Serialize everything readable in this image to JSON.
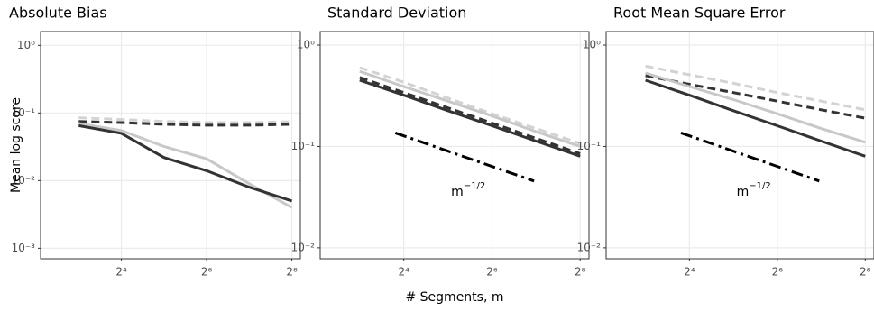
{
  "chart_data": [
    {
      "type": "line",
      "title": "Absolute Bias",
      "ylabel": "Mean log score",
      "log_x": true,
      "log_y": true,
      "grid": true,
      "x": [
        8,
        16,
        32,
        64,
        128,
        256
      ],
      "xlim": [
        4.3,
        294
      ],
      "xticks": [
        {
          "value": 16,
          "label": "2⁴"
        },
        {
          "value": 64,
          "label": "2⁶"
        },
        {
          "value": 256,
          "label": "2⁸"
        }
      ],
      "ylim": [
        0.0007,
        1.6
      ],
      "yticks": [
        {
          "value": 0.001,
          "label": "10⁻³"
        },
        {
          "value": 0.01,
          "label": "10⁻²"
        },
        {
          "value": 0.1,
          "label": "10⁻¹"
        },
        {
          "value": 1,
          "label": "10⁰"
        }
      ],
      "series": [
        {
          "color": "#d3d3d3",
          "linestyle": "dashed",
          "values": [
            0.085,
            0.08,
            0.075,
            0.072,
            0.072,
            0.074
          ]
        },
        {
          "color": "#333333",
          "linestyle": "dashed",
          "values": [
            0.075,
            0.072,
            0.068,
            0.066,
            0.066,
            0.068
          ]
        },
        {
          "color": "#c8c8c8",
          "linestyle": "solid",
          "values": [
            0.07,
            0.055,
            0.032,
            0.021,
            0.009,
            0.004
          ]
        },
        {
          "color": "#333333",
          "linestyle": "solid",
          "values": [
            0.065,
            0.05,
            0.022,
            0.014,
            0.008,
            0.005
          ]
        }
      ]
    },
    {
      "type": "line",
      "title": "Standard Deviation",
      "xlabel": "# Segments, m",
      "log_x": true,
      "log_y": true,
      "grid": true,
      "x": [
        8,
        16,
        32,
        64,
        128,
        256
      ],
      "xlim": [
        4.3,
        294
      ],
      "xticks": [
        {
          "value": 16,
          "label": "2⁴"
        },
        {
          "value": 64,
          "label": "2⁶"
        },
        {
          "value": 256,
          "label": "2⁸"
        }
      ],
      "ylim": [
        0.0078,
        1.36
      ],
      "yticks": [
        {
          "value": 0.01,
          "label": "10⁻²"
        },
        {
          "value": 0.1,
          "label": "10⁻¹"
        },
        {
          "value": 1,
          "label": "10⁰"
        }
      ],
      "series": [
        {
          "color": "#d3d3d3",
          "linestyle": "dashed",
          "values": [
            0.6,
            0.43,
            0.3,
            0.21,
            0.15,
            0.107
          ]
        },
        {
          "color": "#c8c8c8",
          "linestyle": "solid",
          "values": [
            0.55,
            0.39,
            0.28,
            0.2,
            0.14,
            0.1
          ]
        },
        {
          "color": "#333333",
          "linestyle": "dashed",
          "values": [
            0.48,
            0.34,
            0.24,
            0.17,
            0.12,
            0.085
          ]
        },
        {
          "color": "#333333",
          "linestyle": "solid",
          "values": [
            0.45,
            0.32,
            0.225,
            0.16,
            0.113,
            0.08
          ]
        },
        {
          "color": "#000000",
          "linestyle": "dashdot",
          "x": [
            14,
            124
          ],
          "values": [
            0.136,
            0.0456
          ]
        }
      ],
      "annotation": {
        "text": "m",
        "superscript": "−1/2"
      }
    },
    {
      "type": "line",
      "title": "Root Mean Square Error",
      "log_x": true,
      "log_y": true,
      "grid": true,
      "x": [
        8,
        16,
        32,
        64,
        128,
        256
      ],
      "xlim": [
        4.3,
        294
      ],
      "xticks": [
        {
          "value": 16,
          "label": "2⁴"
        },
        {
          "value": 64,
          "label": "2⁶"
        },
        {
          "value": 256,
          "label": "2⁸"
        }
      ],
      "ylim": [
        0.0078,
        1.36
      ],
      "yticks": [
        {
          "value": 0.01,
          "label": "10⁻²"
        },
        {
          "value": 0.1,
          "label": "10⁻¹"
        },
        {
          "value": 1,
          "label": "10⁰"
        }
      ],
      "series": [
        {
          "color": "#d3d3d3",
          "linestyle": "dashed",
          "values": [
            0.62,
            0.51,
            0.42,
            0.34,
            0.28,
            0.23
          ]
        },
        {
          "color": "#333333",
          "linestyle": "dashed",
          "values": [
            0.5,
            0.41,
            0.34,
            0.28,
            0.23,
            0.19
          ]
        },
        {
          "color": "#c8c8c8",
          "linestyle": "solid",
          "values": [
            0.53,
            0.39,
            0.29,
            0.21,
            0.15,
            0.11
          ]
        },
        {
          "color": "#333333",
          "linestyle": "solid",
          "values": [
            0.45,
            0.32,
            0.225,
            0.16,
            0.113,
            0.08
          ]
        },
        {
          "color": "#000000",
          "linestyle": "dashdot",
          "x": [
            14,
            124
          ],
          "values": [
            0.136,
            0.0456
          ]
        }
      ],
      "annotation": {
        "text": "m",
        "superscript": "−1/2"
      }
    }
  ]
}
